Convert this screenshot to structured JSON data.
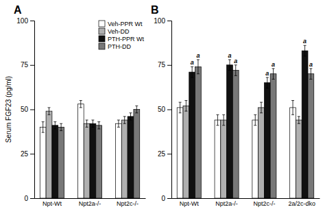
{
  "chart_data": [
    {
      "type": "bar",
      "title": "A",
      "categories": [
        "Npt-Wt",
        "Npt2a-/-",
        "Npt2c-/-"
      ],
      "series": [
        {
          "name": "Veh-PPR Wt",
          "color": "#ffffff",
          "values": [
            40,
            53,
            42
          ],
          "errors": [
            3,
            2,
            2
          ]
        },
        {
          "name": "Veh-DD",
          "color": "#b0b0b0",
          "values": [
            49,
            42,
            44
          ],
          "errors": [
            2,
            2,
            2
          ]
        },
        {
          "name": "PTH-PPR Wt",
          "color": "#111111",
          "values": [
            41,
            42,
            46
          ],
          "errors": [
            2,
            2,
            2
          ]
        },
        {
          "name": "PTH-DD",
          "color": "#787878",
          "values": [
            40,
            41,
            50
          ],
          "errors": [
            2,
            2,
            2
          ]
        }
      ],
      "ylabel": "Serum FGF23 (pg/ml)",
      "ylim": [
        0,
        100
      ],
      "yticks": [
        0,
        25,
        50,
        75,
        100
      ],
      "grid": false,
      "legend": "upper right"
    },
    {
      "type": "bar",
      "title": "B",
      "categories": [
        "Npt-Wt",
        "Npt2a-/-",
        "Npt2c-/-",
        "2a/2c-dko"
      ],
      "series": [
        {
          "name": "Veh-PPR Wt",
          "color": "#ffffff",
          "values": [
            51,
            44,
            44,
            51
          ],
          "errors": [
            3,
            3,
            3,
            4
          ]
        },
        {
          "name": "Veh-DD",
          "color": "#b0b0b0",
          "values": [
            52,
            44,
            51,
            44
          ],
          "errors": [
            3,
            3,
            3,
            2
          ]
        },
        {
          "name": "PTH-PPR Wt",
          "color": "#111111",
          "values": [
            71,
            75,
            65,
            83
          ],
          "errors": [
            3,
            3,
            3,
            3
          ],
          "annotations": [
            "a",
            "a",
            "a",
            "a"
          ]
        },
        {
          "name": "PTH-DD",
          "color": "#787878",
          "values": [
            74,
            72,
            70,
            70
          ],
          "errors": [
            4,
            3,
            3,
            3
          ],
          "annotations": [
            "a",
            "a",
            "a",
            "a"
          ]
        }
      ],
      "ylim": [
        0,
        100
      ],
      "yticks": [
        0,
        25,
        50,
        75,
        100
      ],
      "grid": false
    }
  ]
}
